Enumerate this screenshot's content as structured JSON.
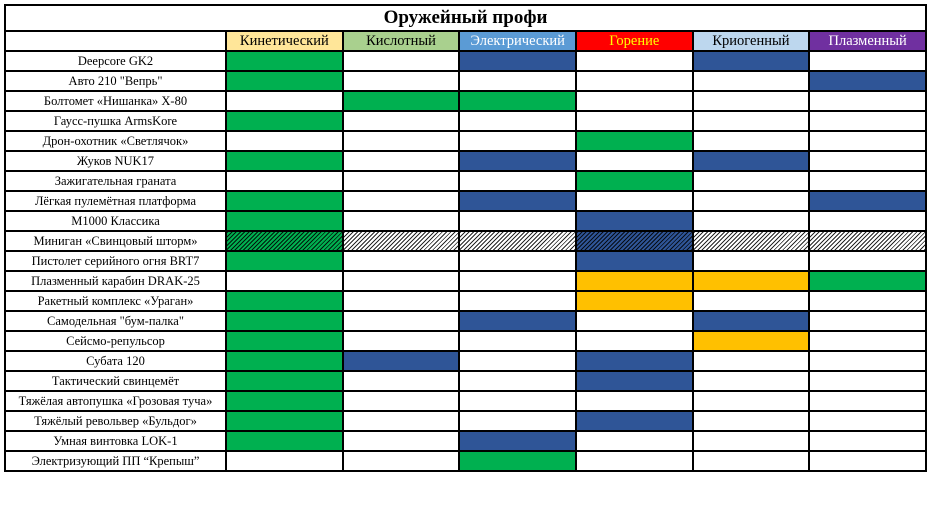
{
  "title": "Оружейный профи",
  "columns": [
    {
      "label": "Кинетический",
      "bg": "#FFE699",
      "fg": "#000000"
    },
    {
      "label": "Кислотный",
      "bg": "#A9D08E",
      "fg": "#000000"
    },
    {
      "label": "Электрический",
      "bg": "#5B9BD5",
      "fg": "#FFFFFF"
    },
    {
      "label": "Горение",
      "bg": "#FF0000",
      "fg": "#FFFF00"
    },
    {
      "label": "Криогенный",
      "bg": "#BDD7EE",
      "fg": "#000000"
    },
    {
      "label": "Плазменный",
      "bg": "#7030A0",
      "fg": "#FFFFFF"
    }
  ],
  "fill_colors": {
    "g": "#00B050",
    "b": "#2F5597",
    "y": "#FFC000",
    "": "#FFFFFF"
  },
  "rows": [
    {
      "name": "Deepcore GK2",
      "cells": [
        "g",
        "",
        "b",
        "",
        "b",
        ""
      ]
    },
    {
      "name": "Авто 210 \"Вепрь\"",
      "cells": [
        "g",
        "",
        "",
        "",
        "",
        "b"
      ]
    },
    {
      "name": "Болтомет «Нишанка» X-80",
      "cells": [
        "",
        "g",
        "g",
        "",
        "",
        ""
      ]
    },
    {
      "name": "Гаусс-пушка ArmsKore",
      "cells": [
        "g",
        "",
        "",
        "",
        "",
        ""
      ]
    },
    {
      "name": "Дрон-охотник «Светлячок»",
      "cells": [
        "",
        "",
        "",
        "g",
        "",
        ""
      ]
    },
    {
      "name": "Жуков NUK17",
      "cells": [
        "g",
        "",
        "b",
        "",
        "b",
        ""
      ]
    },
    {
      "name": "Зажигательная граната",
      "cells": [
        "",
        "",
        "",
        "g",
        "",
        ""
      ]
    },
    {
      "name": "Лёгкая пулемётная платформа",
      "cells": [
        "g",
        "",
        "b",
        "",
        "",
        "b"
      ]
    },
    {
      "name": "M1000 Классика",
      "cells": [
        "g",
        "",
        "",
        "b",
        "",
        ""
      ]
    },
    {
      "name": "Миниган «Свинцовый шторм»",
      "cells": [
        "g",
        "",
        "",
        "b",
        "",
        ""
      ],
      "hatched": true
    },
    {
      "name": "Пистолет серийного огня BRT7",
      "cells": [
        "g",
        "",
        "",
        "b",
        "",
        ""
      ]
    },
    {
      "name": "Плазменный карабин DRAK-25",
      "cells": [
        "",
        "",
        "",
        "y",
        "y",
        "g"
      ]
    },
    {
      "name": "Ракетный комплекс «Ураган»",
      "cells": [
        "g",
        "",
        "",
        "y",
        "",
        ""
      ]
    },
    {
      "name": "Самодельная \"бум-палка\"",
      "cells": [
        "g",
        "",
        "b",
        "",
        "b",
        ""
      ]
    },
    {
      "name": "Сейсмо-репульсор",
      "cells": [
        "g",
        "",
        "",
        "",
        "y",
        ""
      ]
    },
    {
      "name": "Субата 120",
      "cells": [
        "g",
        "b",
        "",
        "b",
        "",
        ""
      ]
    },
    {
      "name": "Тактический свинцемёт",
      "cells": [
        "g",
        "",
        "",
        "b",
        "",
        ""
      ]
    },
    {
      "name": "Тяжёлая автопушка «Грозовая туча»",
      "cells": [
        "g",
        "",
        "",
        "",
        "",
        ""
      ]
    },
    {
      "name": "Тяжёлый револьвер «Бульдог»",
      "cells": [
        "g",
        "",
        "",
        "b",
        "",
        ""
      ]
    },
    {
      "name": "Умная винтовка LOK-1",
      "cells": [
        "g",
        "",
        "b",
        "",
        "",
        ""
      ]
    },
    {
      "name": "Электризующий ПП “Крепыш”",
      "cells": [
        "",
        "",
        "g",
        "",
        "",
        ""
      ]
    }
  ]
}
